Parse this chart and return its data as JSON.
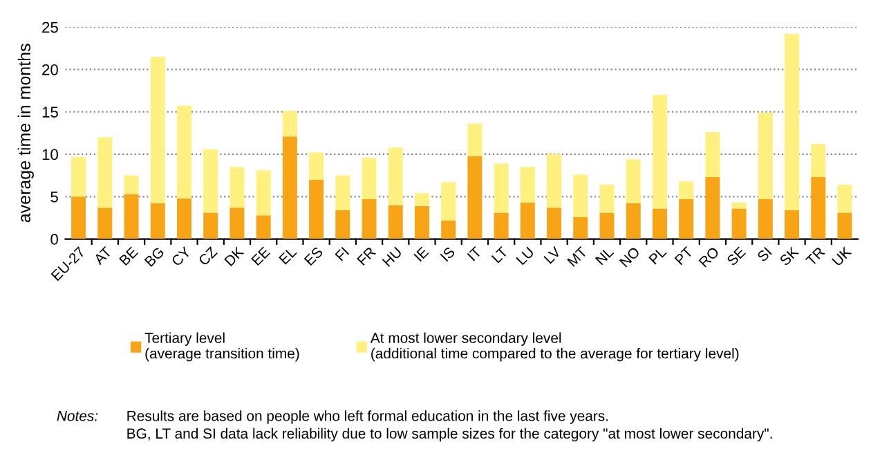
{
  "chart_data": {
    "type": "bar",
    "stacked": true,
    "ylabel": "average time in months",
    "categories": [
      "EU-27",
      "AT",
      "BE",
      "BG",
      "CY",
      "CZ",
      "DK",
      "EE",
      "EL",
      "ES",
      "FI",
      "FR",
      "HU",
      "IE",
      "IS",
      "IT",
      "LT",
      "LU",
      "LV",
      "MT",
      "NL",
      "NO",
      "PL",
      "PT",
      "RO",
      "SE",
      "SI",
      "SK",
      "TR",
      "UK"
    ],
    "series": [
      {
        "name": "Tertiary level\n(average transition time)",
        "color": "#f7a416",
        "values": [
          5.0,
          3.7,
          5.3,
          4.2,
          4.8,
          3.1,
          3.7,
          2.8,
          12.1,
          7.0,
          3.4,
          4.7,
          4.0,
          3.9,
          2.2,
          9.8,
          3.1,
          4.3,
          3.7,
          2.6,
          3.1,
          4.2,
          3.6,
          4.7,
          7.3,
          3.6,
          4.7,
          3.4,
          7.3,
          3.1
        ]
      },
      {
        "name": "At most lower secondary level\n(additional time compared to the average for tertiary level)",
        "color": "#fff080",
        "values": [
          4.7,
          8.3,
          2.2,
          17.3,
          10.9,
          7.5,
          4.8,
          5.3,
          3.0,
          3.2,
          4.1,
          4.9,
          6.8,
          1.5,
          4.5,
          3.8,
          5.8,
          4.2,
          6.3,
          5.0,
          3.3,
          5.2,
          13.4,
          2.1,
          5.3,
          0.7,
          10.2,
          20.8,
          3.9,
          3.3
        ]
      }
    ],
    "ylim": [
      0,
      25
    ],
    "yticks": [
      0,
      5,
      10,
      15,
      20,
      25
    ],
    "grid": "y",
    "legend": "bottom",
    "annotations": [
      "Notes:",
      "Results are based on people who left formal education in the last five years.\nBG, LT and SI data lack reliability due to low sample sizes for the category \"at most lower secondary\"."
    ]
  }
}
